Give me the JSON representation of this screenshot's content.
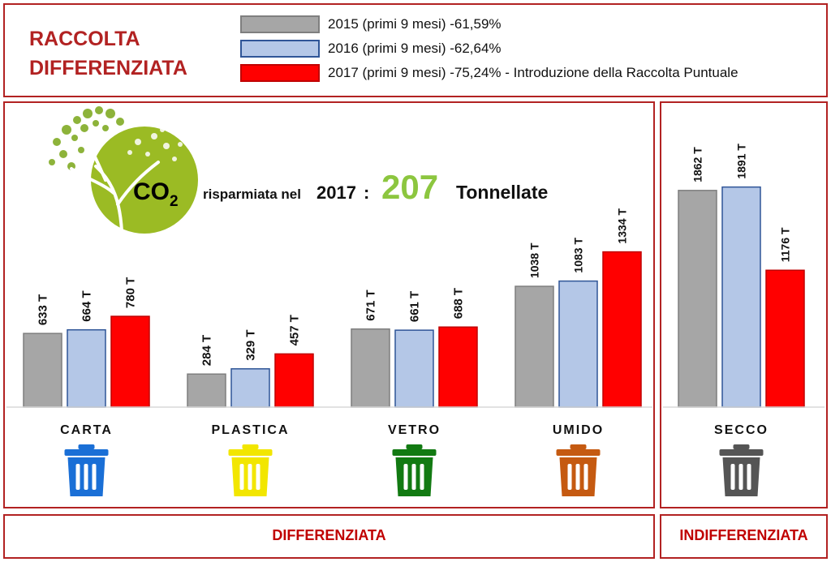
{
  "header": {
    "title_line1": "RACCOLTA",
    "title_line2": "DIFFERENZIATA",
    "legend": [
      {
        "label": "2015 (primi 9 mesi) -61,59%",
        "color": "#a6a6a6",
        "border": "#7f7f7f"
      },
      {
        "label": "2016 (primi 9 mesi) -62,64%",
        "color": "#b4c7e7",
        "border": "#2f5597"
      },
      {
        "label": "2017 (primi 9 mesi) -75,24% - Introduzione della Raccolta Puntuale",
        "color": "#ff0000",
        "border": "#c00000"
      }
    ]
  },
  "co2": {
    "symbol": "CO",
    "subscript": "2",
    "text": "risparmiata nel",
    "year": "2017",
    "colon": ":",
    "value": "207",
    "unit": "Tonnellate"
  },
  "footer": {
    "left": "DIFFERENZIATA",
    "right": "INDIFFERENZIATA"
  },
  "chart_data": {
    "type": "bar",
    "categories": [
      "CARTA",
      "PLASTICA",
      "VETRO",
      "UMIDO",
      "SECCO"
    ],
    "series": [
      {
        "name": "2015 (primi 9 mesi) -61,59%",
        "values": [
          633,
          284,
          671,
          1038,
          1862
        ]
      },
      {
        "name": "2016 (primi 9 mesi) -62,64%",
        "values": [
          664,
          329,
          661,
          1083,
          1891
        ]
      },
      {
        "name": "2017 (primi 9 mesi) -75,24% - Introduzione della Raccolta Puntuale",
        "values": [
          780,
          457,
          688,
          1334,
          1176
        ]
      }
    ],
    "data_labels": [
      [
        "633 T",
        "664 T",
        "780 T"
      ],
      [
        "284 T",
        "329 T",
        "457 T"
      ],
      [
        "671 T",
        "661 T",
        "688 T"
      ],
      [
        "1038 T",
        "1083 T",
        "1334 T"
      ],
      [
        "1862 T",
        "1891 T",
        "1176 T"
      ]
    ],
    "unit": "T",
    "bin_colors": [
      "#1a6fd6",
      "#f2e600",
      "#127a12",
      "#c55a11",
      "#555555"
    ],
    "series_fill": [
      "#a6a6a6",
      "#b4c7e7",
      "#ff0000"
    ],
    "series_stroke": [
      "#7f7f7f",
      "#2f5597",
      "#c00000"
    ]
  }
}
